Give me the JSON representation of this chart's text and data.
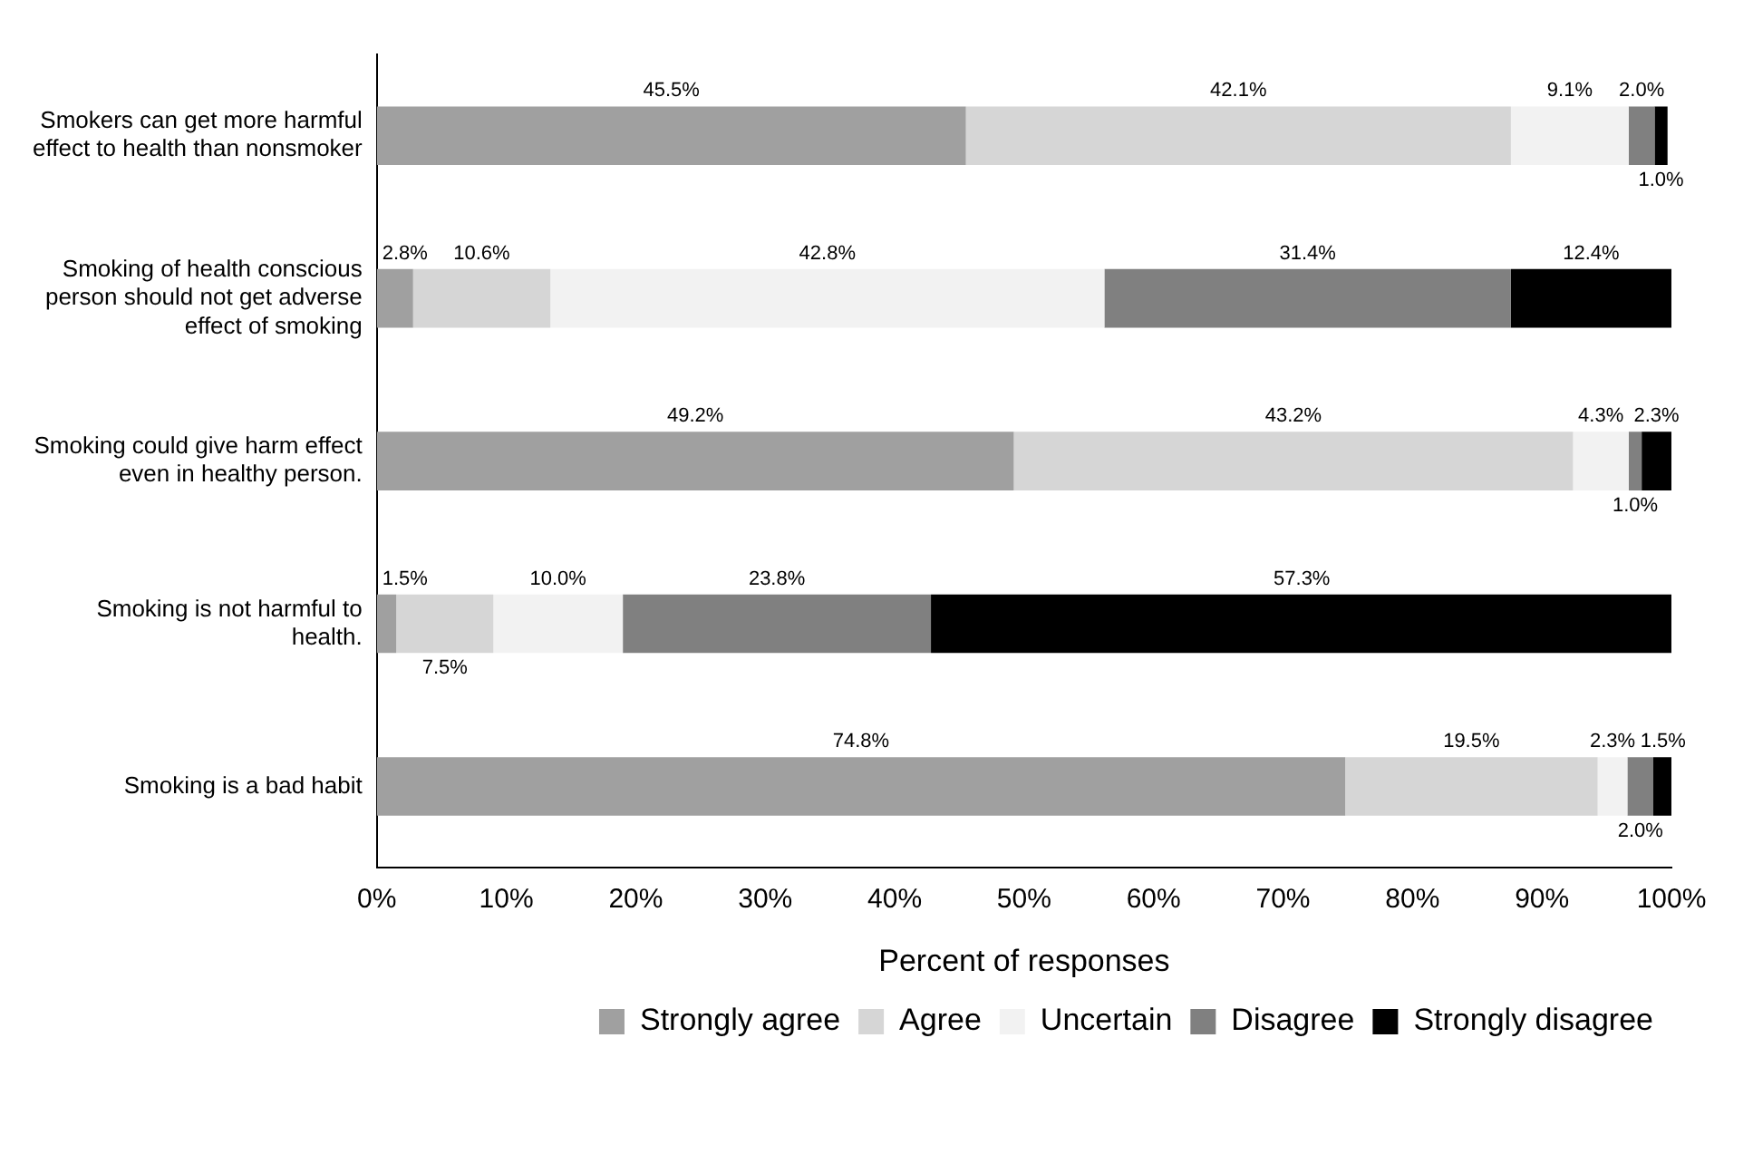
{
  "chart_data": {
    "type": "bar",
    "orientation": "horizontal",
    "stacked": true,
    "categories": [
      "Smokers can get more harmful effect to health than nonsmoker",
      "Smoking of health conscious person should not get adverse effect of smoking",
      "Smoking could give harm effect even in healthy person.",
      "Smoking is not harmful to health.",
      "Smoking is a bad habit"
    ],
    "series": [
      {
        "name": "Strongly agree",
        "color": "#a0a0a0",
        "values": [
          45.5,
          2.8,
          49.2,
          1.5,
          74.8
        ],
        "value_labels": [
          "45.5%",
          "2.8%",
          "49.2%",
          "1.5%",
          "74.8%"
        ]
      },
      {
        "name": "Agree",
        "color": "#d6d6d6",
        "values": [
          42.1,
          10.6,
          43.2,
          7.5,
          19.5
        ],
        "value_labels": [
          "42.1%",
          "10.6%",
          "43.2%",
          "7.5%",
          "19.5%"
        ]
      },
      {
        "name": "Uncertain",
        "color": "#f2f2f2",
        "values": [
          9.1,
          42.8,
          4.3,
          10.0,
          2.3
        ],
        "value_labels": [
          "9.1%",
          "42.8%",
          "4.3%",
          "10.0%",
          "2.3%"
        ]
      },
      {
        "name": "Disagree",
        "color": "#808080",
        "values": [
          2.0,
          31.4,
          1.0,
          23.8,
          2.0
        ],
        "value_labels": [
          "2.0%",
          "31.4%",
          "1.0%",
          "23.8%",
          "2.0%"
        ]
      },
      {
        "name": "Strongly disagree",
        "color": "#000000",
        "values": [
          1.0,
          12.4,
          2.3,
          57.3,
          1.5
        ],
        "value_labels": [
          "1.0%",
          "12.4%",
          "2.3%",
          "57.3%",
          "1.5%"
        ]
      }
    ],
    "xlabel": "Percent of responses",
    "xlim": [
      0,
      100
    ],
    "xticks": [
      {
        "value": 0,
        "label": "0%"
      },
      {
        "value": 10,
        "label": "10%"
      },
      {
        "value": 20,
        "label": "20%"
      },
      {
        "value": 30,
        "label": "30%"
      },
      {
        "value": 40,
        "label": "40%"
      },
      {
        "value": 50,
        "label": "50%"
      },
      {
        "value": 60,
        "label": "60%"
      },
      {
        "value": 70,
        "label": "70%"
      },
      {
        "value": 80,
        "label": "80%"
      },
      {
        "value": 90,
        "label": "90%"
      },
      {
        "value": 100,
        "label": "100%"
      }
    ],
    "grid": false,
    "legend": "bottom right"
  }
}
